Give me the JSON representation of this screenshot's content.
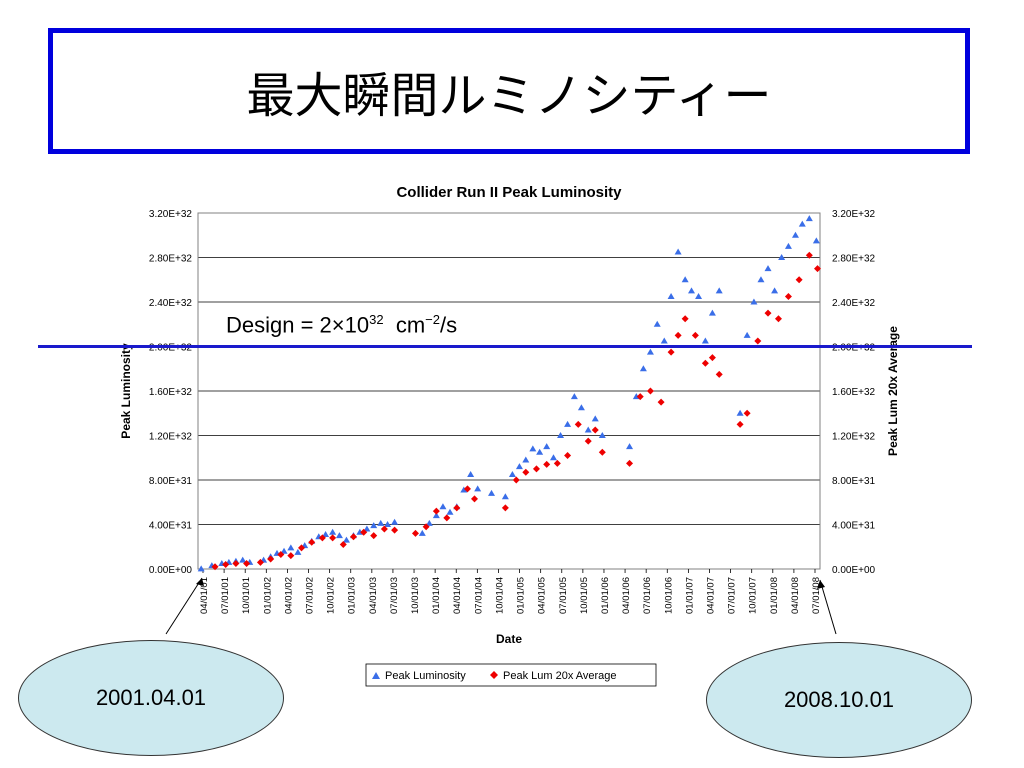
{
  "slide": {
    "title": "最大瞬間ルミノシティー",
    "design_label": {
      "prefix": "Design = 2×10",
      "exp": "32",
      "unit_a": "cm",
      "unit_exp": "−2",
      "unit_b": "/s"
    },
    "callout_left": "2001.04.01",
    "callout_right": "2008.10.01"
  },
  "chart_data": {
    "type": "scatter",
    "title": "Collider Run II Peak Luminosity",
    "xlabel": "Date",
    "ylabel": "Peak Luminosity",
    "y2label": "Peak Lum 20x Average",
    "ylim": [
      0,
      3.2e+32
    ],
    "yticks": [
      "0.00E+00",
      "4.00E+31",
      "8.00E+31",
      "1.20E+32",
      "1.60E+32",
      "2.00E+32",
      "2.40E+32",
      "2.80E+32",
      "3.20E+32"
    ],
    "xlim": [
      "2001-04-01",
      "2008-10-01"
    ],
    "xticks": [
      "04/01/01",
      "07/01/01",
      "10/01/01",
      "01/01/02",
      "04/01/02",
      "07/01/02",
      "10/01/02",
      "01/01/03",
      "04/01/03",
      "07/01/03",
      "10/01/03",
      "01/01/04",
      "04/01/04",
      "07/01/04",
      "10/01/04",
      "01/01/05",
      "04/01/05",
      "07/01/05",
      "10/01/05",
      "01/01/06",
      "04/01/06",
      "07/01/06",
      "10/01/06",
      "01/01/07",
      "04/01/07",
      "07/01/07",
      "10/01/07",
      "01/01/08",
      "04/01/08",
      "07/01/08"
    ],
    "design_line": 2e+32,
    "grid": true,
    "legend_position": "bottom",
    "colors": {
      "peak": "#3a6ee8",
      "average": "#ee0000",
      "design": "#1a1acc",
      "grid": "#000000"
    },
    "series": [
      {
        "name": "Peak Luminosity",
        "marker": "triangle",
        "x": [
          "2001-04-15",
          "2001-06-01",
          "2001-07-15",
          "2001-08-15",
          "2001-09-15",
          "2001-10-15",
          "2001-11-15",
          "2002-01-15",
          "2002-02-15",
          "2002-03-15",
          "2002-04-15",
          "2002-05-15",
          "2002-06-15",
          "2002-07-15",
          "2002-08-15",
          "2002-09-15",
          "2002-10-15",
          "2002-11-15",
          "2002-12-15",
          "2003-01-15",
          "2003-02-15",
          "2003-03-15",
          "2003-04-15",
          "2003-05-15",
          "2003-06-15",
          "2003-07-15",
          "2003-08-15",
          "2003-12-15",
          "2004-01-15",
          "2004-02-15",
          "2004-03-15",
          "2004-04-15",
          "2004-05-15",
          "2004-06-15",
          "2004-07-15",
          "2004-08-15",
          "2004-10-15",
          "2004-12-15",
          "2005-01-15",
          "2005-02-15",
          "2005-03-15",
          "2005-04-15",
          "2005-05-15",
          "2005-06-15",
          "2005-07-15",
          "2005-08-15",
          "2005-09-15",
          "2005-10-15",
          "2005-11-15",
          "2005-12-15",
          "2006-01-15",
          "2006-02-15",
          "2006-06-15",
          "2006-07-15",
          "2006-08-15",
          "2006-09-15",
          "2006-10-15",
          "2006-11-15",
          "2006-12-15",
          "2007-01-15",
          "2007-02-15",
          "2007-03-15",
          "2007-04-15",
          "2007-05-15",
          "2007-06-15",
          "2007-07-15",
          "2007-10-15",
          "2007-11-15",
          "2007-12-15",
          "2008-01-15",
          "2008-02-15",
          "2008-03-15",
          "2008-04-15",
          "2008-05-15",
          "2008-06-15",
          "2008-07-15",
          "2008-08-15",
          "2008-09-15"
        ],
        "y": [
          1e+29,
          3e+30,
          5e+30,
          6e+30,
          7e+30,
          8e+30,
          6e+30,
          8e+30,
          1.1e+31,
          1.4e+31,
          1.6e+31,
          1.9e+31,
          1.5e+31,
          2.1e+31,
          2.5e+31,
          2.9e+31,
          3.1e+31,
          3.3e+31,
          3e+31,
          2.6e+31,
          3e+31,
          3.3e+31,
          3.6e+31,
          3.9e+31,
          4.1e+31,
          4e+31,
          4.2e+31,
          3.2e+31,
          4.1e+31,
          4.8e+31,
          5.6e+31,
          5.1e+31,
          5.6e+31,
          7.1e+31,
          8.5e+31,
          7.2e+31,
          6.8e+31,
          6.5e+31,
          8.5e+31,
          9.2e+31,
          9.8e+31,
          1.08e+32,
          1.05e+32,
          1.1e+32,
          1e+32,
          1.2e+32,
          1.3e+32,
          1.55e+32,
          1.45e+32,
          1.25e+32,
          1.35e+32,
          1.2e+32,
          1.1e+32,
          1.55e+32,
          1.8e+32,
          1.95e+32,
          2.2e+32,
          2.05e+32,
          2.45e+32,
          2.85e+32,
          2.6e+32,
          2.5e+32,
          2.45e+32,
          2.05e+32,
          2.3e+32,
          2.5e+32,
          1.4e+32,
          2.1e+32,
          2.4e+32,
          2.6e+32,
          2.7e+32,
          2.5e+32,
          2.8e+32,
          2.9e+32,
          3e+32,
          3.1e+32,
          3.15e+32,
          2.95e+32
        ]
      },
      {
        "name": "Peak Lum 20x Average",
        "marker": "diamond",
        "x": [
          "2001-06-15",
          "2001-08-01",
          "2001-09-15",
          "2001-11-01",
          "2002-01-01",
          "2002-02-15",
          "2002-04-01",
          "2002-05-15",
          "2002-07-01",
          "2002-08-15",
          "2002-10-01",
          "2002-11-15",
          "2003-01-01",
          "2003-02-15",
          "2003-04-01",
          "2003-05-15",
          "2003-07-01",
          "2003-08-15",
          "2003-11-15",
          "2004-01-01",
          "2004-02-15",
          "2004-04-01",
          "2004-05-15",
          "2004-07-01",
          "2004-08-01",
          "2004-12-15",
          "2005-02-01",
          "2005-03-15",
          "2005-05-01",
          "2005-06-15",
          "2005-08-01",
          "2005-09-15",
          "2005-11-01",
          "2005-12-15",
          "2006-01-15",
          "2006-02-15",
          "2006-06-15",
          "2006-08-01",
          "2006-09-15",
          "2006-11-01",
          "2006-12-15",
          "2007-01-15",
          "2007-02-15",
          "2007-04-01",
          "2007-05-15",
          "2007-06-15",
          "2007-07-15",
          "2007-10-15",
          "2007-11-15",
          "2008-01-01",
          "2008-02-15",
          "2008-04-01",
          "2008-05-15",
          "2008-07-01",
          "2008-08-15",
          "2008-09-20"
        ],
        "y": [
          2e+30,
          4e+30,
          5e+30,
          5e+30,
          6e+30,
          9e+30,
          1.3e+31,
          1.2e+31,
          1.9e+31,
          2.4e+31,
          2.8e+31,
          2.8e+31,
          2.2e+31,
          2.9e+31,
          3.3e+31,
          3e+31,
          3.6e+31,
          3.5e+31,
          3.2e+31,
          3.8e+31,
          5.2e+31,
          4.6e+31,
          5.5e+31,
          7.2e+31,
          6.3e+31,
          5.5e+31,
          8e+31,
          8.7e+31,
          9e+31,
          9.4e+31,
          9.5e+31,
          1.02e+32,
          1.3e+32,
          1.15e+32,
          1.25e+32,
          1.05e+32,
          9.5e+31,
          1.55e+32,
          1.6e+32,
          1.5e+32,
          1.95e+32,
          2.1e+32,
          2.25e+32,
          2.1e+32,
          1.85e+32,
          1.9e+32,
          1.75e+32,
          1.3e+32,
          1.4e+32,
          2.05e+32,
          2.3e+32,
          2.25e+32,
          2.45e+32,
          2.6e+32,
          2.82e+32,
          2.7e+32
        ]
      }
    ]
  }
}
